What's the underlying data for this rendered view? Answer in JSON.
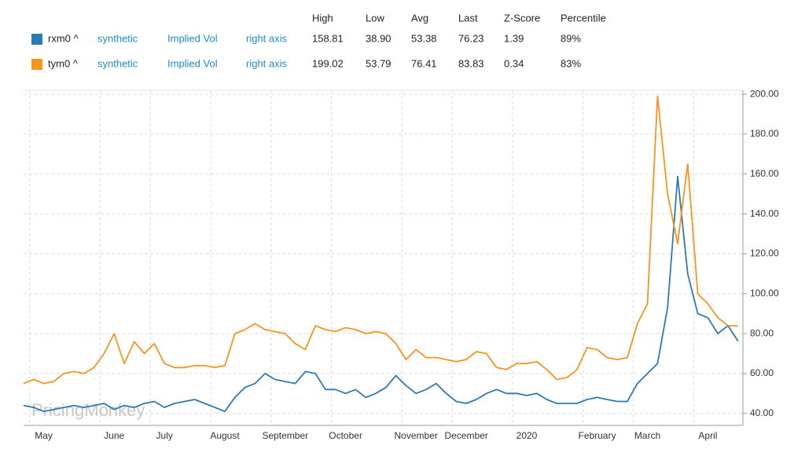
{
  "chart_data": {
    "type": "line",
    "stat_headers": [
      "High",
      "Low",
      "Avg",
      "Last",
      "Z-Score",
      "Percentile"
    ],
    "watermark": "PricingMonkey",
    "categories": [
      null,
      null,
      "May",
      null,
      null,
      null,
      null,
      null,
      null,
      "June",
      null,
      null,
      null,
      null,
      "July",
      null,
      null,
      null,
      null,
      null,
      "August",
      null,
      null,
      null,
      null,
      null,
      "September",
      null,
      null,
      null,
      null,
      null,
      "October",
      null,
      null,
      null,
      null,
      null,
      null,
      "November",
      null,
      null,
      null,
      null,
      "December",
      null,
      null,
      null,
      null,
      null,
      "2020",
      null,
      null,
      null,
      null,
      null,
      null,
      "February",
      null,
      null,
      null,
      null,
      "March",
      null,
      null,
      null,
      null,
      null,
      "April",
      null,
      null,
      null
    ],
    "series": [
      {
        "name": "rxm0 ^",
        "color": "#2a7ab8",
        "source": "synthetic",
        "measure": "Implied Vol",
        "axis_side": "right axis",
        "stats": [
          "158.81",
          "38.90",
          "53.38",
          "76.23",
          "1.39",
          "89%"
        ],
        "values": [
          44,
          43,
          41,
          42,
          43,
          44,
          43,
          44,
          45,
          42,
          44,
          43,
          45,
          46,
          43,
          45,
          46,
          47,
          45,
          43,
          41,
          48,
          53,
          55,
          60,
          57,
          56,
          55,
          61,
          60,
          52,
          52,
          50,
          52,
          48,
          50,
          53,
          59,
          54,
          50,
          52,
          55,
          50,
          46,
          45,
          47,
          50,
          52,
          50,
          50,
          49,
          50,
          47,
          45,
          45,
          45,
          47,
          48,
          47,
          46,
          46,
          55,
          60,
          65,
          93,
          158.81,
          110,
          90,
          88,
          80,
          84,
          76.23
        ]
      },
      {
        "name": "tym0 ^",
        "color": "#f7941d",
        "source": "synthetic",
        "measure": "Implied Vol",
        "axis_side": "right axis",
        "stats": [
          "199.02",
          "53.79",
          "76.41",
          "83.83",
          "0.34",
          "83%"
        ],
        "values": [
          55,
          57,
          55,
          56,
          60,
          61,
          60,
          63,
          70,
          80,
          65,
          76,
          70,
          75,
          65,
          63,
          63,
          64,
          64,
          63,
          64,
          80,
          82,
          85,
          82,
          81,
          80,
          75,
          72,
          84,
          82,
          81,
          83,
          82,
          80,
          81,
          80,
          75,
          67,
          72,
          68,
          68,
          67,
          66,
          67,
          71,
          70,
          63,
          62,
          65,
          65,
          66,
          62,
          57,
          58,
          62,
          73,
          72,
          68,
          67,
          68,
          85,
          95,
          199.02,
          150,
          125,
          165,
          100,
          95,
          88,
          84,
          83.83
        ]
      }
    ],
    "ylim": [
      34,
      202
    ],
    "yticks": [
      {
        "value": 40,
        "label": "40.00"
      },
      {
        "value": 60,
        "label": "60.00"
      },
      {
        "value": 80,
        "label": "80.00"
      },
      {
        "value": 100,
        "label": "100.00"
      },
      {
        "value": 120,
        "label": "120.00"
      },
      {
        "value": 140,
        "label": "140.00"
      },
      {
        "value": 160,
        "label": "160.00"
      },
      {
        "value": 180,
        "label": "180.00"
      },
      {
        "value": 200,
        "label": "200.00"
      }
    ],
    "grid": true
  }
}
